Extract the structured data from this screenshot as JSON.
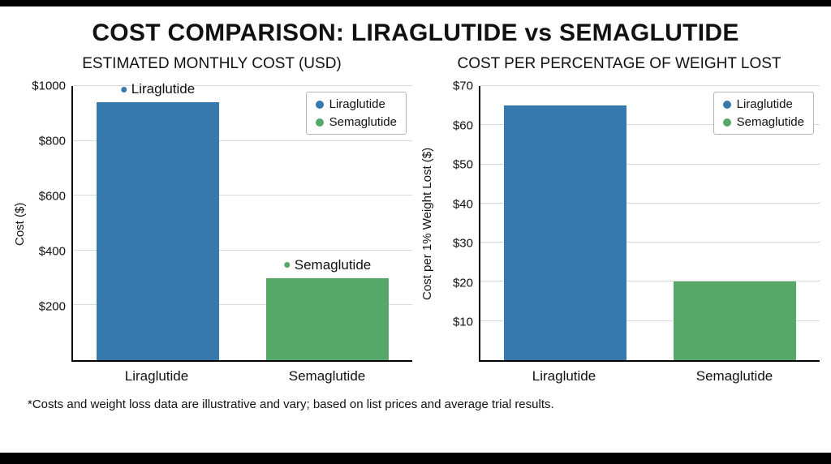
{
  "main_title": "COST COMPARISON: LIRAGLUTIDE vs SEMAGLUTIDE",
  "footnote": "*Costs and weight loss data are illustrative and vary; based on list prices and average trial results.",
  "colors": {
    "liraglutide": "#3779ad",
    "semaglutide": "#55a868",
    "grid": "#d9d9d9",
    "axis": "#000000",
    "legend_border": "#b3b3b3"
  },
  "chart_data": [
    {
      "type": "bar",
      "title": "ESTIMATED MONTHLY COST (USD)",
      "ylabel": "Cost ($)",
      "xlabel": "",
      "categories": [
        "Liraglutide",
        "Semaglutide"
      ],
      "values": [
        940,
        300
      ],
      "bar_colors": [
        "#3779ad",
        "#55a868"
      ],
      "ylim": [
        0,
        1000
      ],
      "yticks": [
        {
          "value": 200,
          "label": "$200"
        },
        {
          "value": 400,
          "label": "$400"
        },
        {
          "value": 600,
          "label": "$600"
        },
        {
          "value": 800,
          "label": "$800"
        },
        {
          "value": 1000,
          "label": "$1000"
        }
      ],
      "grid": true,
      "legend_position": "upper right",
      "legend": [
        {
          "label": "Liraglutide",
          "color": "#3779ad"
        },
        {
          "label": "Semaglutide",
          "color": "#55a868"
        }
      ],
      "annotations": [
        {
          "label": "Liraglutide",
          "series": 0,
          "color": "#3779ad"
        },
        {
          "label": "Semaglutide",
          "series": 1,
          "color": "#55a868"
        }
      ]
    },
    {
      "type": "bar",
      "title": "COST PER PERCENTAGE OF WEIGHT LOST",
      "ylabel": "Cost per 1% Weight Lost ($)",
      "xlabel": "",
      "categories": [
        "Liraglutide",
        "Semaglutide"
      ],
      "values": [
        65,
        20
      ],
      "bar_colors": [
        "#3779ad",
        "#55a868"
      ],
      "ylim": [
        0,
        70
      ],
      "yticks": [
        {
          "value": 10,
          "label": "$10"
        },
        {
          "value": 20,
          "label": "$20"
        },
        {
          "value": 30,
          "label": "$30"
        },
        {
          "value": 40,
          "label": "$40"
        },
        {
          "value": 50,
          "label": "$50"
        },
        {
          "value": 60,
          "label": "$60"
        },
        {
          "value": 70,
          "label": "$70"
        }
      ],
      "grid": true,
      "legend_position": "upper right",
      "legend": [
        {
          "label": "Liraglutide",
          "color": "#3779ad"
        },
        {
          "label": "Semaglutide",
          "color": "#55a868"
        }
      ],
      "annotations": []
    }
  ]
}
